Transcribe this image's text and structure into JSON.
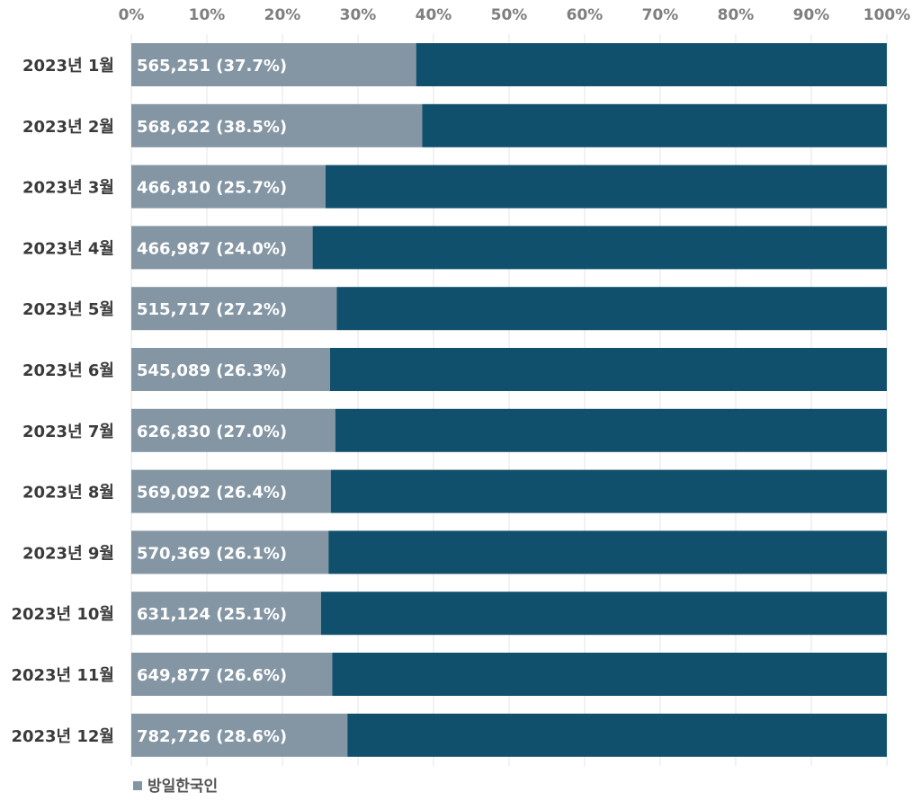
{
  "chart_data": {
    "type": "bar",
    "orientation": "horizontal",
    "stacked": true,
    "normalized_percent": true,
    "categories": [
      "2023년 1월",
      "2023년 2월",
      "2023년 3월",
      "2023년 4월",
      "2023년 5월",
      "2023년 6월",
      "2023년 7월",
      "2023년 8월",
      "2023년 9월",
      "2023년 10월",
      "2023년 11월",
      "2023년 12월"
    ],
    "series": [
      {
        "name": "방일한국인",
        "color": "#8496a4",
        "values": [
          37.7,
          38.5,
          25.7,
          24.0,
          27.2,
          26.3,
          27.0,
          26.4,
          26.1,
          25.1,
          26.6,
          28.6
        ],
        "counts": [
          565251,
          568622,
          466810,
          466987,
          515717,
          545089,
          626830,
          569092,
          570369,
          631124,
          649877,
          782726
        ],
        "data_labels": [
          "565,251 (37.7%)",
          "568,622 (38.5%)",
          "466,810 (25.7%)",
          "466,987 (24.0%)",
          "515,717 (27.2%)",
          "545,089 (26.3%)",
          "626,830 (27.0%)",
          "569,092 (26.4%)",
          "570,369 (26.1%)",
          "631,124 (25.1%)",
          "649,877 (26.6%)",
          "782,726 (28.6%)"
        ]
      },
      {
        "color": "#11506c",
        "values": [
          62.3,
          61.5,
          74.3,
          76.0,
          72.8,
          73.7,
          73.0,
          73.6,
          73.9,
          74.9,
          73.4,
          71.4
        ]
      }
    ],
    "x_axis_position": "top",
    "xlim": [
      0,
      100
    ],
    "xticks": [
      0,
      10,
      20,
      30,
      40,
      50,
      60,
      70,
      80,
      90,
      100
    ],
    "xtick_labels": [
      "0%",
      "10%",
      "20%",
      "30%",
      "40%",
      "50%",
      "60%",
      "70%",
      "80%",
      "90%",
      "100%"
    ],
    "grid": true,
    "legend": {
      "placement": "bottom-left",
      "entries": [
        "방일한국인"
      ]
    },
    "colors": {
      "grid": "#e4e4e4"
    }
  }
}
